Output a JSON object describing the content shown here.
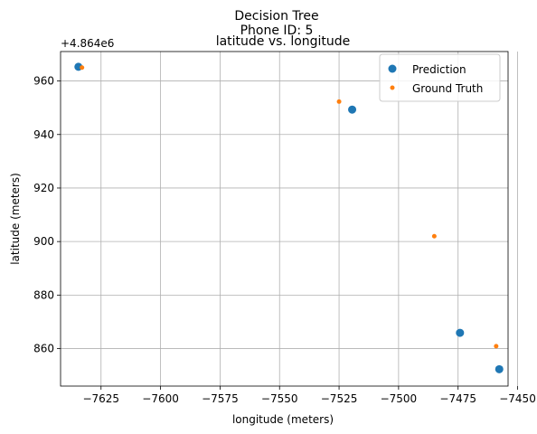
{
  "chart_data": {
    "type": "scatter",
    "title_lines": [
      "Decision Tree",
      "Phone ID: 5"
    ],
    "subtitle": "latitude vs. longitude",
    "xlabel": "longitude (meters)",
    "ylabel": "latitude (meters)",
    "y_offset_label": "+4.864e6",
    "xlim": [
      -7642,
      -7454
    ],
    "ylim": [
      846,
      971
    ],
    "xticks": [
      -7625,
      -7600,
      -7575,
      -7550,
      -7525,
      -7500,
      -7475,
      -7450
    ],
    "xtick_labels": [
      "−7625",
      "−7600",
      "−7575",
      "−7550",
      "−7525",
      "−7500",
      "−7475",
      "−7450"
    ],
    "yticks": [
      860,
      880,
      900,
      920,
      940,
      960
    ],
    "ytick_labels": [
      "860",
      "880",
      "900",
      "920",
      "940",
      "960"
    ],
    "grid": true,
    "legend_position": "upper right",
    "series": [
      {
        "name": "Prediction",
        "color": "#1f77b4",
        "marker": "large",
        "points": [
          {
            "x": -7634.5,
            "y": 965.3
          },
          {
            "x": -7519.5,
            "y": 949.3
          },
          {
            "x": -7474.2,
            "y": 865.9
          },
          {
            "x": -7457.7,
            "y": 852.3
          }
        ]
      },
      {
        "name": "Ground Truth",
        "color": "#ff7f0e",
        "marker": "small",
        "points": [
          {
            "x": -7633.0,
            "y": 965.0
          },
          {
            "x": -7525.0,
            "y": 952.3
          },
          {
            "x": -7485.0,
            "y": 902.0
          },
          {
            "x": -7459.0,
            "y": 860.9
          }
        ]
      }
    ]
  }
}
